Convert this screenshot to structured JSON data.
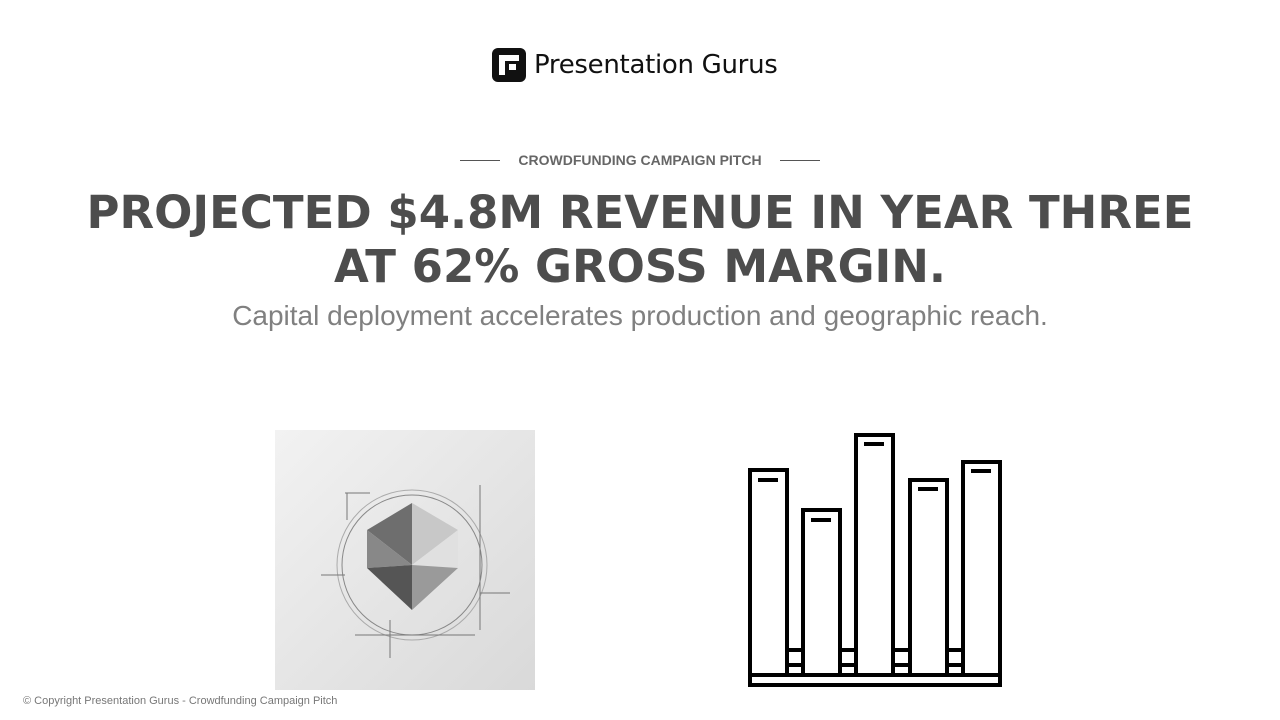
{
  "logo": {
    "text": "Presentation Gurus"
  },
  "header": {
    "eyebrow": "CROWDFUNDING CAMPAIGN PITCH",
    "title": "PROJECTED $4.8M REVENUE IN YEAR THREE AT 62% GROSS MARGIN.",
    "subtitle": "Capital deployment accelerates production and geographic reach."
  },
  "footer": {
    "text": "© Copyright Presentation Gurus - Crowdfunding Campaign Pitch"
  }
}
